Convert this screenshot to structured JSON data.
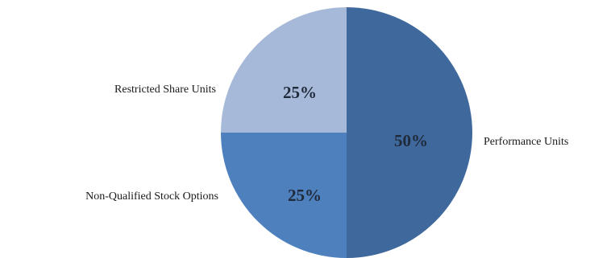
{
  "chart_data": {
    "type": "pie",
    "title": "",
    "slices": [
      {
        "label": "Performance Units",
        "value": 50,
        "value_label": "50%",
        "color": "#3f689c"
      },
      {
        "label": "Non-Qualified Stock Options",
        "value": 25,
        "value_label": "25%",
        "color": "#4e80bd"
      },
      {
        "label": "Restricted Share Units",
        "value": 25,
        "value_label": "25%",
        "color": "#a7b9d8"
      }
    ],
    "legend": "none",
    "labels_position": "outside"
  }
}
